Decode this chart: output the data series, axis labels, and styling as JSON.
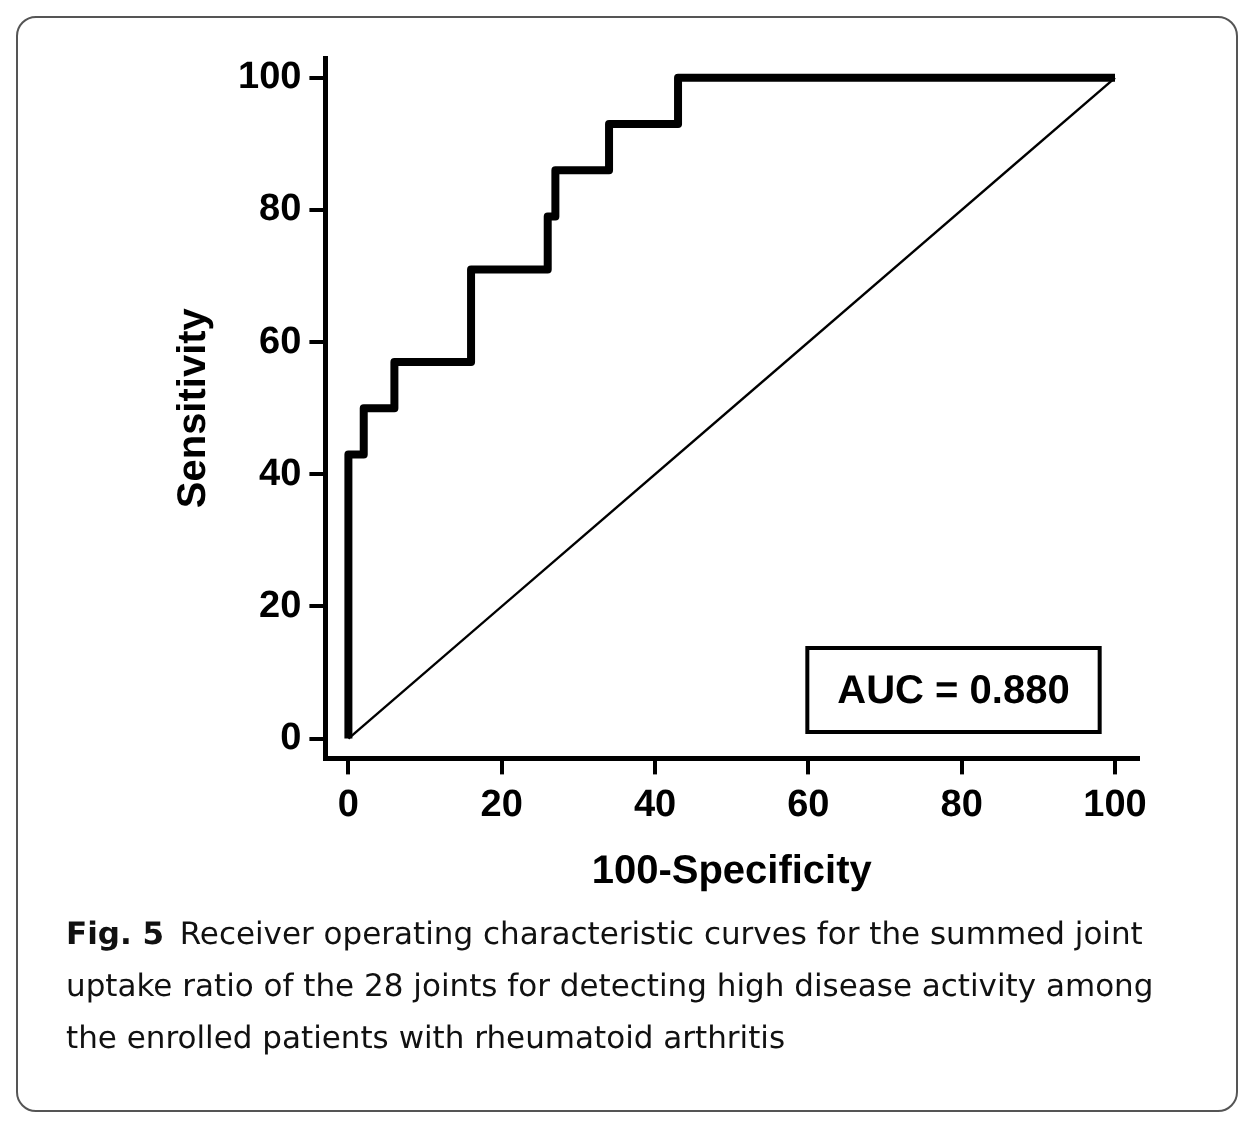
{
  "chart_data": {
    "type": "step",
    "xlabel": "100-Specificity",
    "ylabel": "Sensitivity",
    "xlim": [
      -3,
      103
    ],
    "ylim": [
      -3,
      103
    ],
    "xticks": [
      0,
      20,
      40,
      60,
      80,
      100
    ],
    "yticks": [
      0,
      20,
      40,
      60,
      80,
      100
    ],
    "grid": false,
    "legend": false,
    "marker": "none",
    "series": [
      {
        "type": "step",
        "color": "#000000",
        "x": [
          0,
          0,
          2,
          6,
          16,
          26,
          27,
          34,
          43,
          100
        ],
        "values": [
          0,
          43,
          50,
          57,
          71,
          79,
          86,
          93,
          100,
          100
        ]
      },
      {
        "type": "line",
        "color": "#000000",
        "x": [
          0,
          100
        ],
        "values": [
          0,
          100
        ]
      }
    ],
    "annotations": [
      "AUC = 0.880",
      "Fig. 5",
      "Receiver operating characteristic curves for the summed joint uptake ratio of the 28 joints for detecting high disease activity among the enrolled patients with rheumatoid arthritis"
    ]
  }
}
